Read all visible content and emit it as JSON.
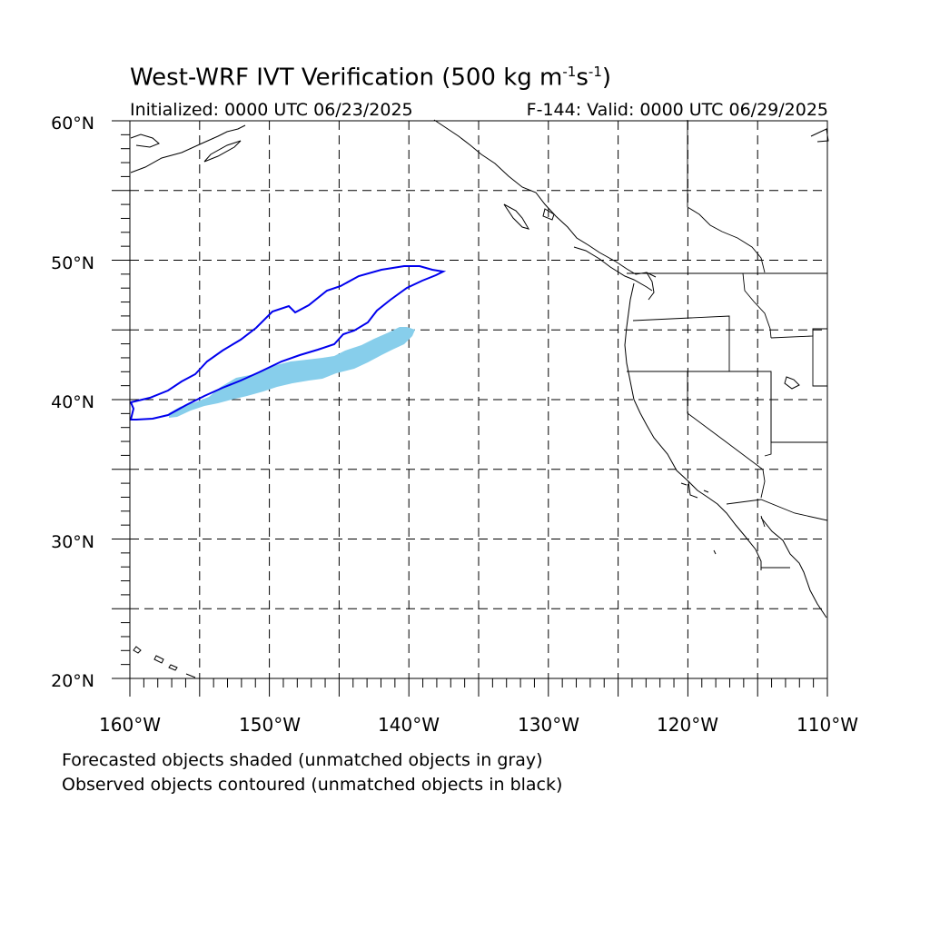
{
  "title": {
    "prefix": "West-WRF IVT Verification (500 kg m",
    "sup1": "-1",
    "mid": "s",
    "sup2": "-1",
    "suffix": ")"
  },
  "initialized": "Initialized: 0000 UTC 06/23/2025",
  "valid": "F-144: Valid: 0000 UTC 06/29/2025",
  "lat_labels": [
    "60°N",
    "50°N",
    "40°N",
    "30°N",
    "20°N"
  ],
  "lon_labels": [
    "160°W",
    "150°W",
    "140°W",
    "130°W",
    "120°W",
    "110°W"
  ],
  "footnotes": [
    "Forecasted objects shaded (unmatched objects in gray)",
    "Observed objects contoured (unmatched objects in black)"
  ],
  "colors": {
    "forecast_shading": "#87ceeb",
    "observed_contour": "#0000ee",
    "coastline": "#000000",
    "gridline": "#000000"
  },
  "map": {
    "projection": "cylindrical-equidistant",
    "lon_range": [
      -160,
      -110
    ],
    "lat_range": [
      20,
      60
    ],
    "grid_spacing_deg": 5,
    "grid_style": "dashed"
  }
}
